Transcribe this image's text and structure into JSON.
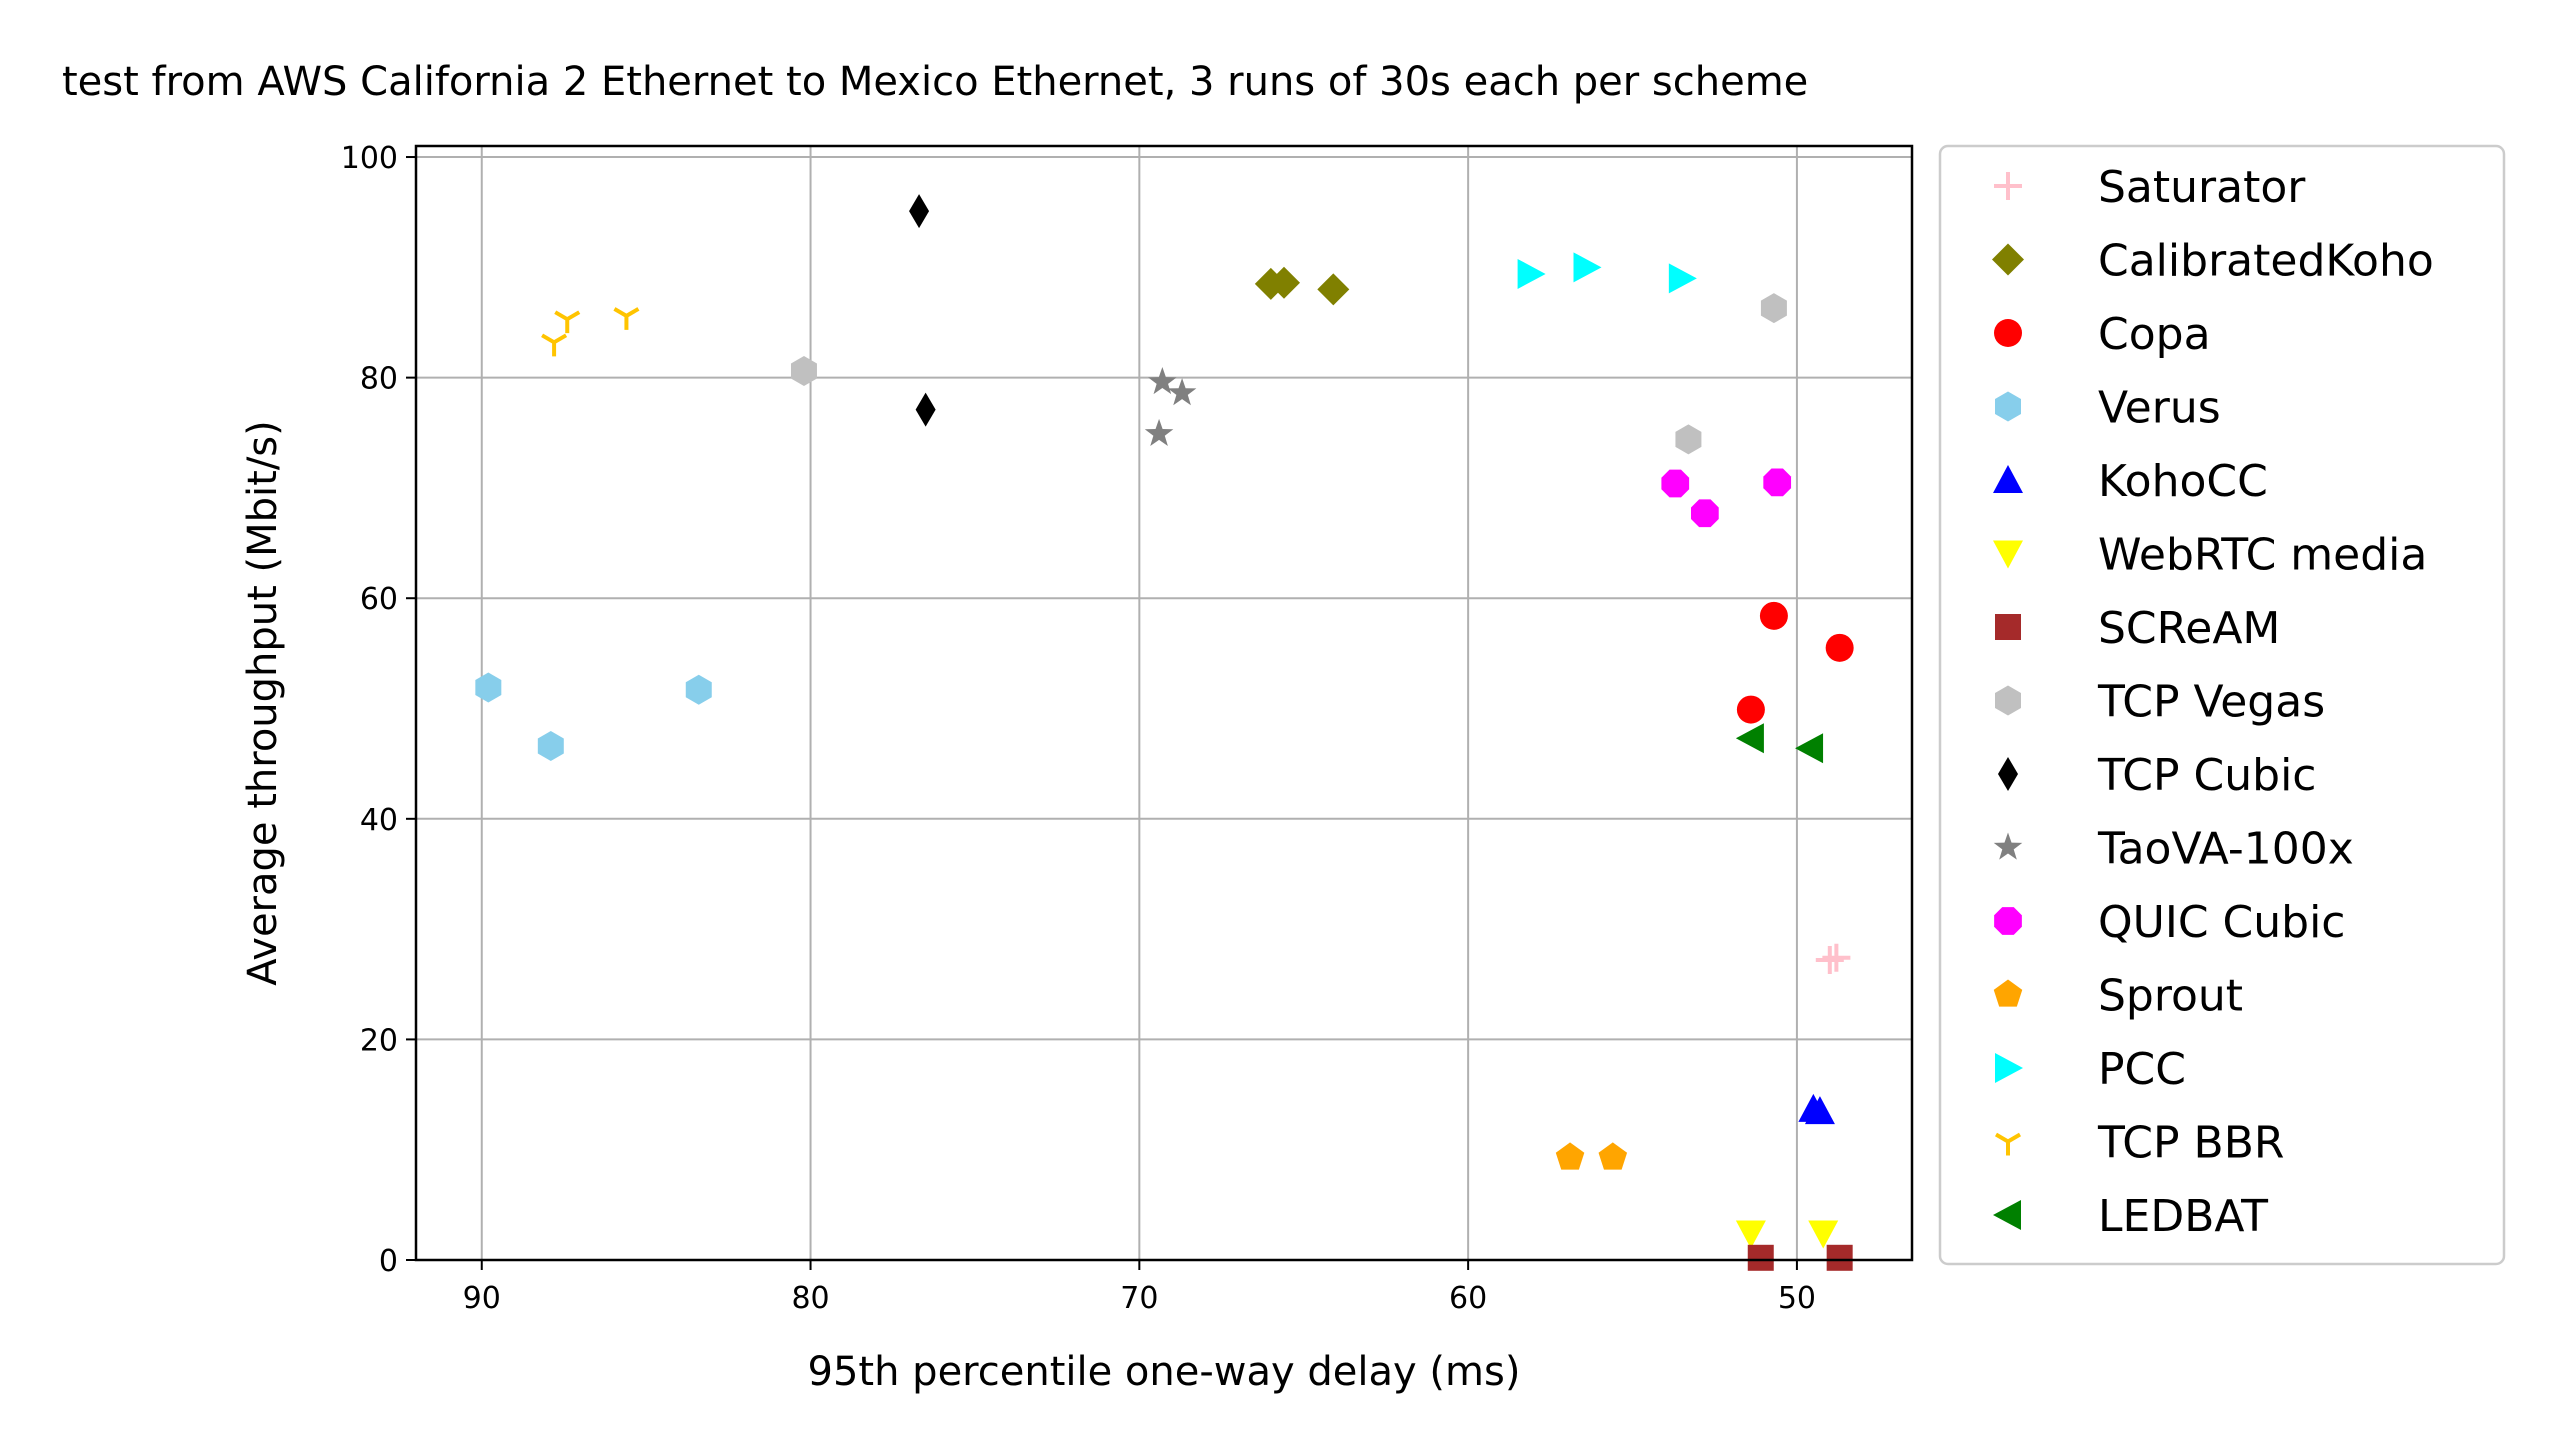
{
  "chart_data": {
    "type": "scatter",
    "title": "test from AWS California 2 Ethernet to Mexico Ethernet, 3 runs of 30s each per scheme",
    "xlabel": "95th percentile one-way delay (ms)",
    "ylabel": "Average throughput (Mbit/s)",
    "xlim": [
      92,
      46.5
    ],
    "ylim": [
      0,
      101
    ],
    "x_inverted": true,
    "grid": true,
    "legend_position": "outside-right",
    "x_ticks": [
      90,
      80,
      70,
      60,
      50
    ],
    "y_ticks": [
      0,
      20,
      40,
      60,
      80,
      100
    ],
    "series": [
      {
        "name": "Saturator",
        "marker": "plus",
        "color": "#ffc0cb",
        "points": [
          [
            49.0,
            27.2
          ],
          [
            48.8,
            27.4
          ]
        ]
      },
      {
        "name": "CalibratedKoho",
        "marker": "diamond",
        "color": "#808000",
        "points": [
          [
            66.0,
            88.5
          ],
          [
            65.6,
            88.6
          ],
          [
            64.1,
            88.0
          ]
        ]
      },
      {
        "name": "Copa",
        "marker": "circle",
        "color": "#ff0000",
        "points": [
          [
            51.4,
            49.9
          ],
          [
            50.7,
            58.4
          ],
          [
            48.7,
            55.5
          ]
        ]
      },
      {
        "name": "Verus",
        "marker": "hexagon",
        "color": "#87ceeb",
        "points": [
          [
            89.8,
            51.9
          ],
          [
            87.9,
            46.6
          ],
          [
            83.4,
            51.7
          ]
        ]
      },
      {
        "name": "KohoCC",
        "marker": "triangle-up",
        "color": "#0000ff",
        "points": [
          [
            49.5,
            13.7
          ],
          [
            49.3,
            13.5
          ]
        ]
      },
      {
        "name": "WebRTC media",
        "marker": "triangle-down",
        "color": "#ffff00",
        "points": [
          [
            51.4,
            2.4
          ],
          [
            49.2,
            2.4
          ]
        ]
      },
      {
        "name": "SCReAM",
        "marker": "square",
        "color": "#a52a2a",
        "points": [
          [
            51.1,
            0.2
          ],
          [
            48.7,
            0.2
          ]
        ]
      },
      {
        "name": "TCP Vegas",
        "marker": "hexagon",
        "color": "#c0c0c0",
        "points": [
          [
            80.2,
            80.6
          ],
          [
            53.3,
            74.4
          ],
          [
            50.7,
            86.3
          ]
        ]
      },
      {
        "name": "TCP Cubic",
        "marker": "thin-diamond",
        "color": "#000000",
        "points": [
          [
            76.7,
            95.1
          ],
          [
            76.5,
            77.1
          ]
        ]
      },
      {
        "name": "TaoVA-100x",
        "marker": "star",
        "color": "#808080",
        "points": [
          [
            69.3,
            79.6
          ],
          [
            68.7,
            78.6
          ],
          [
            69.4,
            74.9
          ]
        ]
      },
      {
        "name": "QUIC Cubic",
        "marker": "octagon",
        "color": "#ff00ff",
        "points": [
          [
            53.7,
            70.4
          ],
          [
            52.8,
            67.7
          ],
          [
            50.6,
            70.5
          ]
        ]
      },
      {
        "name": "Sprout",
        "marker": "pentagon",
        "color": "#ffa500",
        "points": [
          [
            56.9,
            9.3
          ],
          [
            55.6,
            9.3
          ]
        ]
      },
      {
        "name": "PCC",
        "marker": "triangle-right",
        "color": "#00ffff",
        "points": [
          [
            58.1,
            89.4
          ],
          [
            56.4,
            90.0
          ],
          [
            53.5,
            89.0
          ]
        ]
      },
      {
        "name": "TCP BBR",
        "marker": "tri-down",
        "color": "#ffc400",
        "points": [
          [
            87.8,
            83.2
          ],
          [
            87.4,
            85.3
          ],
          [
            85.6,
            85.6
          ]
        ]
      },
      {
        "name": "LEDBAT",
        "marker": "triangle-left",
        "color": "#008000",
        "points": [
          [
            51.4,
            47.3
          ],
          [
            49.6,
            46.4
          ]
        ]
      }
    ]
  }
}
